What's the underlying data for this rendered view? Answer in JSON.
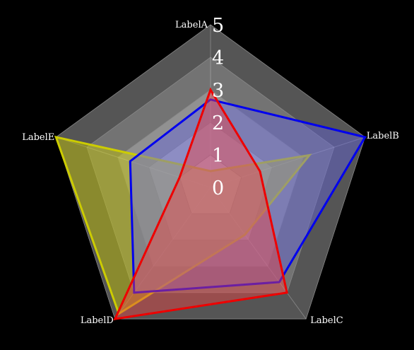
{
  "chart_data": {
    "type": "radar",
    "axes": [
      "LabelA",
      "LabelB",
      "LabelC",
      "LabelD",
      "LabelE"
    ],
    "scale": {
      "min": 0,
      "max": 5,
      "ticks": [
        "0",
        "1",
        "2",
        "3",
        "4",
        "5"
      ]
    },
    "grid": true,
    "series": [
      {
        "values": [
          0.5,
          3.2,
          1.8,
          4.8,
          5.0
        ],
        "stroke": "#cccc00",
        "fill": "#cccc00",
        "fill_opacity": 0.45
      },
      {
        "values": [
          2.7,
          5.0,
          3.6,
          4.0,
          2.6
        ],
        "stroke": "#0000ee",
        "fill": "#6666dd",
        "fill_opacity": 0.45
      },
      {
        "values": [
          3.0,
          1.6,
          4.0,
          5.0,
          1.0
        ],
        "stroke": "#ee0000",
        "fill": "#ee4444",
        "fill_opacity": 0.45
      }
    ],
    "colors": {
      "background": "#000000",
      "ring_outer": "#555555",
      "ring_inner": "#cccccc",
      "axis_line": "#ffffff"
    }
  }
}
